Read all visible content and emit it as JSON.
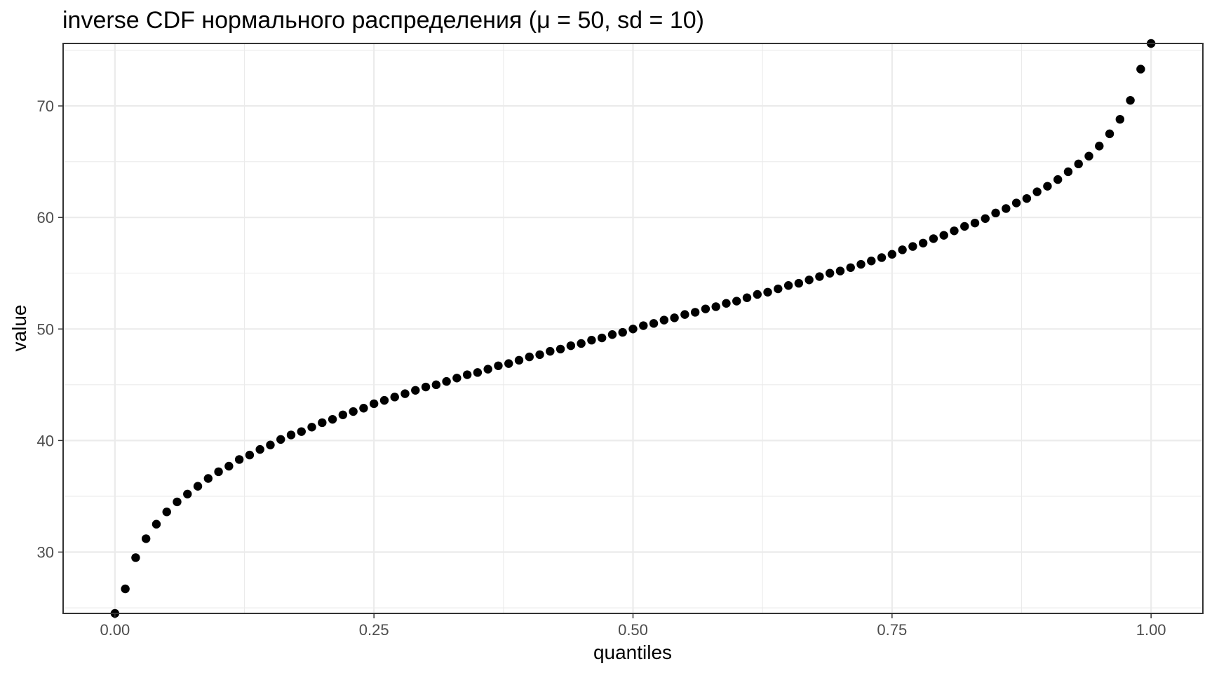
{
  "chart_data": {
    "type": "scatter",
    "title": "inverse CDF нормального распределения (μ = 50, sd = 10)",
    "xlabel": "quantiles",
    "ylabel": "value",
    "xlim": [
      -0.05,
      1.05
    ],
    "ylim": [
      24.5,
      75.6
    ],
    "x_ticks": [
      0.0,
      0.25,
      0.5,
      0.75,
      1.0
    ],
    "x_tick_labels": [
      "0.00",
      "0.25",
      "0.50",
      "0.75",
      "1.00"
    ],
    "y_ticks": [
      30,
      40,
      50,
      60,
      70
    ],
    "y_tick_labels": [
      "30",
      "40",
      "50",
      "60",
      "70"
    ],
    "grid": true,
    "point_color": "#000000",
    "series": [
      {
        "x": [
          0.0,
          0.01,
          0.02,
          0.03,
          0.04,
          0.05,
          0.06,
          0.07,
          0.08,
          0.09,
          0.1,
          0.11,
          0.12,
          0.13,
          0.14,
          0.15,
          0.16,
          0.17,
          0.18,
          0.19,
          0.2,
          0.21,
          0.22,
          0.23,
          0.24,
          0.25,
          0.26,
          0.27,
          0.28,
          0.29,
          0.3,
          0.31,
          0.32,
          0.33,
          0.34,
          0.35,
          0.36,
          0.37,
          0.38,
          0.39,
          0.4,
          0.41,
          0.42,
          0.43,
          0.44,
          0.45,
          0.46,
          0.47,
          0.48,
          0.49,
          0.5,
          0.51,
          0.52,
          0.53,
          0.54,
          0.55,
          0.56,
          0.57,
          0.58,
          0.59,
          0.6,
          0.61,
          0.62,
          0.63,
          0.64,
          0.65,
          0.66,
          0.67,
          0.68,
          0.69,
          0.7,
          0.71,
          0.72,
          0.73,
          0.74,
          0.75,
          0.76,
          0.77,
          0.78,
          0.79,
          0.8,
          0.81,
          0.82,
          0.83,
          0.84,
          0.85,
          0.86,
          0.87,
          0.88,
          0.89,
          0.9,
          0.91,
          0.92,
          0.93,
          0.94,
          0.95,
          0.96,
          0.97,
          0.98,
          0.99,
          1.0
        ],
        "y": [
          24.5,
          26.7,
          29.5,
          31.2,
          32.5,
          33.6,
          34.5,
          35.2,
          35.9,
          36.6,
          37.2,
          37.7,
          38.3,
          38.7,
          39.2,
          39.6,
          40.1,
          40.5,
          40.8,
          41.2,
          41.6,
          41.9,
          42.3,
          42.6,
          42.9,
          43.3,
          43.6,
          43.9,
          44.2,
          44.5,
          44.8,
          45.0,
          45.3,
          45.6,
          45.9,
          46.1,
          46.4,
          46.7,
          46.9,
          47.2,
          47.5,
          47.7,
          48.0,
          48.2,
          48.5,
          48.7,
          49.0,
          49.2,
          49.5,
          49.7,
          50.0,
          50.3,
          50.5,
          50.8,
          51.0,
          51.3,
          51.5,
          51.8,
          52.0,
          52.3,
          52.5,
          52.8,
          53.1,
          53.3,
          53.6,
          53.9,
          54.1,
          54.4,
          54.7,
          55.0,
          55.2,
          55.5,
          55.8,
          56.1,
          56.4,
          56.7,
          57.1,
          57.4,
          57.7,
          58.1,
          58.4,
          58.8,
          59.2,
          59.5,
          59.9,
          60.4,
          60.8,
          61.3,
          61.7,
          62.3,
          62.8,
          63.4,
          64.1,
          64.8,
          65.5,
          66.4,
          67.5,
          68.8,
          70.5,
          73.3,
          75.6
        ]
      }
    ]
  }
}
